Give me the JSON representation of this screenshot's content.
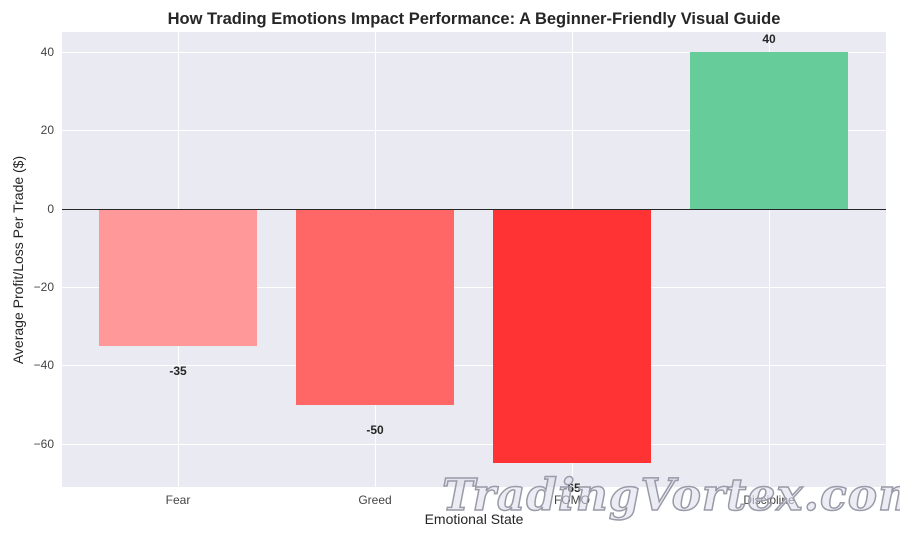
{
  "chart_data": {
    "type": "bar",
    "title": "How Trading Emotions Impact Performance: A Beginner-Friendly Visual Guide",
    "xlabel": "Emotional State",
    "ylabel": "Average Profit/Loss Per Trade ($)",
    "categories": [
      "Fear",
      "Greed",
      "FOMO",
      "Discipline"
    ],
    "values": [
      -35,
      -50,
      -65,
      40
    ],
    "value_labels": [
      "-35",
      "-50",
      "-65",
      "40"
    ],
    "colors": [
      "#ff9999",
      "#ff6666",
      "#ff3333",
      "#66cc99"
    ],
    "ylim": [
      -71,
      45
    ],
    "yticks": [
      40,
      20,
      0,
      -20,
      -40,
      -60
    ],
    "ytick_labels": [
      "40",
      "20",
      "0",
      "−20",
      "−40",
      "−60"
    ],
    "grid": true,
    "legend": null,
    "zero_line": true
  },
  "watermark": "TradingVortex.com"
}
